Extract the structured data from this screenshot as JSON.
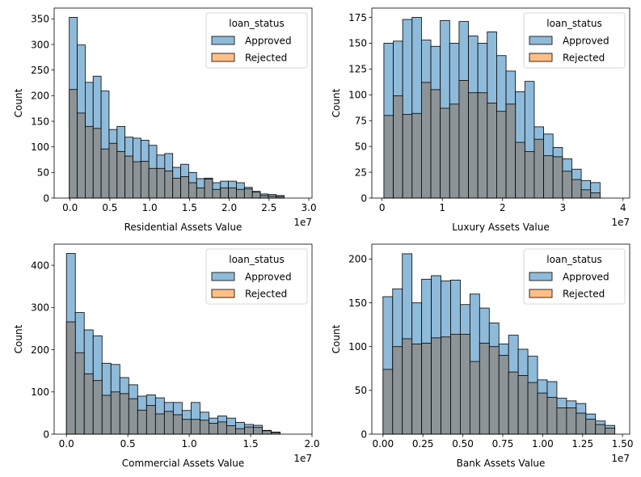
{
  "chart_data": [
    {
      "type": "histogram",
      "xlabel": "Residential Assets Value",
      "ylabel": "Count",
      "offset_text": "1e7",
      "xlim": [
        -0.2,
        3.04
      ],
      "ylim": [
        0,
        371
      ],
      "xticks": [
        {
          "v": 0.0,
          "label": "0.0"
        },
        {
          "v": 0.5,
          "label": "0.5"
        },
        {
          "v": 1.0,
          "label": "1.0"
        },
        {
          "v": 1.5,
          "label": "1.5"
        },
        {
          "v": 2.0,
          "label": "2.0"
        },
        {
          "v": 2.5,
          "label": "2.5"
        },
        {
          "v": 3.0,
          "label": "3.0"
        }
      ],
      "yticks": [
        0,
        50,
        100,
        150,
        200,
        250,
        300,
        350
      ],
      "bin_start": -0.01,
      "bin_width": 0.1,
      "legend": {
        "title": "loan_status",
        "position": "upper right",
        "entries": [
          "Approved",
          "Rejected"
        ]
      },
      "series": [
        {
          "name": "Approved",
          "color": "#1f77b4",
          "values": [
            353,
            299,
            226,
            238,
            209,
            134,
            140,
            119,
            117,
            113,
            103,
            84,
            87,
            60,
            66,
            50,
            38,
            39,
            30,
            33,
            33,
            30,
            21,
            13,
            8,
            7,
            5
          ]
        },
        {
          "name": "Rejected",
          "color": "#ff7f0e",
          "values": [
            212,
            166,
            140,
            136,
            96,
            107,
            91,
            82,
            71,
            72,
            58,
            58,
            53,
            39,
            42,
            30,
            20,
            37,
            17,
            20,
            20,
            17,
            18,
            12,
            5,
            4,
            3
          ]
        }
      ]
    },
    {
      "type": "histogram",
      "xlabel": "Luxury Assets Value",
      "ylabel": "Count",
      "offset_text": "1e7",
      "xlim": [
        -0.17,
        4.11
      ],
      "ylim": [
        0,
        184
      ],
      "xticks": [
        {
          "v": 0,
          "label": "0"
        },
        {
          "v": 1,
          "label": "1"
        },
        {
          "v": 2,
          "label": "2"
        },
        {
          "v": 3,
          "label": "3"
        },
        {
          "v": 4,
          "label": "4"
        }
      ],
      "yticks": [
        0,
        25,
        50,
        75,
        100,
        125,
        150,
        175
      ],
      "bin_start": 0.03,
      "bin_width": 0.156,
      "legend": {
        "title": "loan_status",
        "position": "upper right",
        "entries": [
          "Approved",
          "Rejected"
        ]
      },
      "series": [
        {
          "name": "Approved",
          "color": "#1f77b4",
          "values": [
            150,
            152,
            173,
            175,
            153,
            147,
            172,
            150,
            171,
            157,
            150,
            161,
            138,
            123,
            103,
            113,
            69,
            62,
            49,
            38,
            28,
            17,
            15
          ]
        },
        {
          "name": "Rejected",
          "color": "#ff7f0e",
          "values": [
            80,
            99,
            81,
            82,
            112,
            105,
            87,
            91,
            114,
            102,
            102,
            92,
            84,
            91,
            54,
            45,
            57,
            41,
            40,
            26,
            18,
            8,
            5
          ]
        }
      ]
    },
    {
      "type": "histogram",
      "xlabel": "Commercial Assets Value",
      "ylabel": "Count",
      "offset_text": "1e7",
      "xlim": [
        -0.1,
        2.0
      ],
      "ylim": [
        0,
        450
      ],
      "xticks": [
        {
          "v": 0.0,
          "label": "0.0"
        },
        {
          "v": 0.5,
          "label": "0.5"
        },
        {
          "v": 1.0,
          "label": "1.0"
        },
        {
          "v": 1.5,
          "label": "1.5"
        },
        {
          "v": 2.0,
          "label": "2.0"
        }
      ],
      "yticks": [
        0,
        100,
        200,
        300,
        400
      ],
      "bin_start": 0.0,
      "bin_width": 0.0725,
      "legend": {
        "title": "loan_status",
        "position": "upper right",
        "entries": [
          "Approved",
          "Rejected"
        ]
      },
      "series": [
        {
          "name": "Approved",
          "color": "#1f77b4",
          "values": [
            428,
            288,
            247,
            233,
            168,
            165,
            134,
            117,
            90,
            93,
            86,
            75,
            75,
            56,
            75,
            52,
            38,
            43,
            38,
            28,
            23,
            21,
            9,
            5
          ]
        },
        {
          "name": "Rejected",
          "color": "#ff7f0e",
          "values": [
            266,
            193,
            143,
            127,
            92,
            100,
            96,
            84,
            57,
            68,
            48,
            54,
            46,
            35,
            35,
            33,
            26,
            29,
            20,
            13,
            17,
            16,
            8,
            4
          ]
        }
      ]
    },
    {
      "type": "histogram",
      "xlabel": "Bank Assets Value",
      "ylabel": "Count",
      "offset_text": "1e7",
      "xlim": [
        -0.07,
        1.545
      ],
      "ylim": [
        0,
        217
      ],
      "xticks": [
        {
          "v": 0.0,
          "label": "0.00"
        },
        {
          "v": 0.25,
          "label": "0.25"
        },
        {
          "v": 0.5,
          "label": "0.50"
        },
        {
          "v": 0.75,
          "label": "0.75"
        },
        {
          "v": 1.0,
          "label": "1.00"
        },
        {
          "v": 1.25,
          "label": "1.25"
        },
        {
          "v": 1.5,
          "label": "1.50"
        }
      ],
      "yticks": [
        0,
        50,
        100,
        150,
        200
      ],
      "bin_start": 0.0,
      "bin_width": 0.0605,
      "legend": {
        "title": "loan_status",
        "position": "upper right",
        "entries": [
          "Approved",
          "Rejected"
        ]
      },
      "series": [
        {
          "name": "Approved",
          "color": "#1f77b4",
          "values": [
            157,
            166,
            206,
            150,
            177,
            181,
            175,
            176,
            148,
            160,
            144,
            127,
            103,
            113,
            97,
            89,
            62,
            60,
            41,
            38,
            35,
            23,
            15,
            10
          ]
        },
        {
          "name": "Rejected",
          "color": "#ff7f0e",
          "values": [
            74,
            100,
            109,
            103,
            104,
            110,
            111,
            114,
            114,
            83,
            104,
            100,
            90,
            71,
            67,
            59,
            47,
            42,
            30,
            30,
            24,
            17,
            11,
            7
          ]
        }
      ]
    }
  ]
}
